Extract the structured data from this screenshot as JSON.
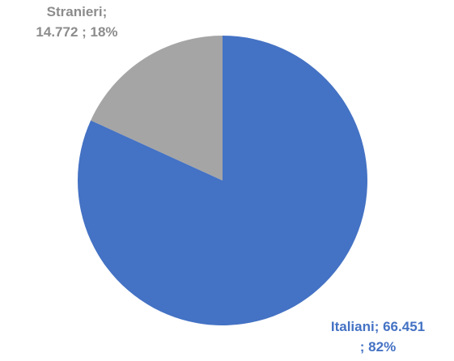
{
  "chart_data": {
    "type": "pie",
    "title": "",
    "slices": [
      {
        "category": "Italiani",
        "value": 66451,
        "value_label": "66.451",
        "percent": 82,
        "label_line1": "Italiani;  66.451",
        "label_line2": "; 82%",
        "color": "#4472c4"
      },
      {
        "category": "Stranieri",
        "value": 14772,
        "value_label": "14.772",
        "percent": 18,
        "label_line1": "Stranieri;",
        "label_line2": "14.772 ; 18%",
        "color": "#a5a5a5"
      }
    ],
    "start_angle_deg": 0,
    "direction": "clockwise",
    "legend": "none"
  }
}
